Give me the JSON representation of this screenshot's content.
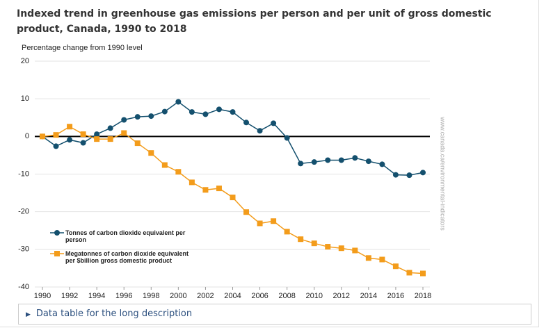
{
  "chart_data": {
    "type": "line",
    "title": "Indexed trend in greenhouse gas emissions per person and per unit of gross domestic product, Canada, 1990 to 2018",
    "ylabel": "Percentage change from 1990 level",
    "watermark": "www.canada.ca/environmental-indicators",
    "x": [
      1990,
      1991,
      1992,
      1993,
      1994,
      1995,
      1996,
      1997,
      1998,
      1999,
      2000,
      2001,
      2002,
      2003,
      2004,
      2005,
      2006,
      2007,
      2008,
      2009,
      2010,
      2011,
      2012,
      2013,
      2014,
      2015,
      2016,
      2017,
      2018
    ],
    "xlim": [
      1990,
      2018
    ],
    "xticks": [
      1990,
      1992,
      1994,
      1996,
      1998,
      2000,
      2002,
      2004,
      2006,
      2008,
      2010,
      2012,
      2014,
      2016,
      2018
    ],
    "ylim": [
      -40,
      20
    ],
    "yticks": [
      -40,
      -30,
      -20,
      -10,
      0,
      10,
      20
    ],
    "grid": true,
    "series": [
      {
        "name": "Tonnes of carbon dioxide equivalent per person",
        "color": "#14506e",
        "marker": "circle",
        "values": [
          0,
          -2.6,
          -0.9,
          -1.7,
          0.6,
          2.2,
          4.4,
          5.2,
          5.4,
          6.6,
          9.2,
          6.5,
          5.9,
          7.2,
          6.5,
          3.7,
          1.5,
          3.5,
          -0.4,
          -7.2,
          -6.8,
          -6.3,
          -6.3,
          -5.7,
          -6.6,
          -7.4,
          -10.2,
          -10.3,
          -9.6
        ]
      },
      {
        "name": "Megatonnes of carbon dioxide equivalent per $billion gross domestic product",
        "color": "#f39c1b",
        "marker": "square",
        "values": [
          0,
          0.4,
          2.6,
          0.6,
          -0.7,
          -0.7,
          0.9,
          -1.8,
          -4.4,
          -7.6,
          -9.4,
          -12.2,
          -14.2,
          -13.8,
          -16.2,
          -20.1,
          -23.1,
          -22.5,
          -25.3,
          -27.3,
          -28.4,
          -29.3,
          -29.7,
          -30.3,
          -32.3,
          -32.7,
          -34.5,
          -36.2,
          -36.4
        ]
      }
    ]
  },
  "data_table": {
    "summary": "Data table for the long description"
  }
}
